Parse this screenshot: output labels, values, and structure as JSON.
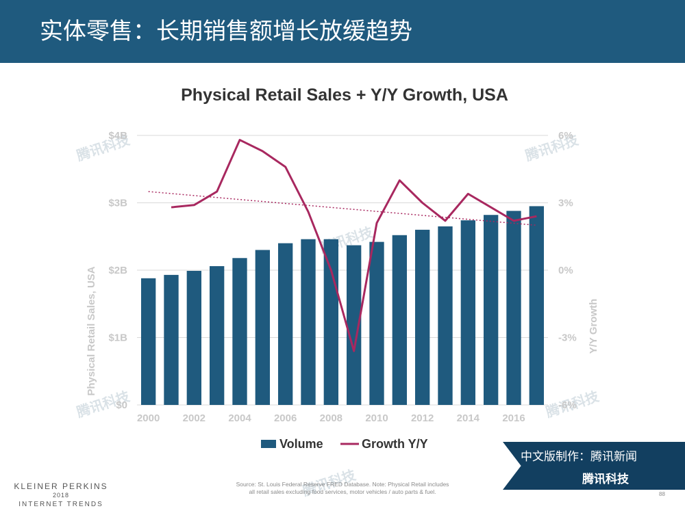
{
  "header": {
    "title": "实体零售：长期销售额增长放缓趋势"
  },
  "chart_data": {
    "type": "bar",
    "title": "Physical Retail Sales + Y/Y Growth, USA",
    "ylabel_left": "Physical Retail Sales, USA",
    "ylabel_right": "Y/Y Growth",
    "x": [
      2000,
      2001,
      2002,
      2003,
      2004,
      2005,
      2006,
      2007,
      2008,
      2009,
      2010,
      2011,
      2012,
      2013,
      2014,
      2015,
      2016,
      2017
    ],
    "xtick_labels": [
      "2000",
      "2002",
      "2004",
      "2006",
      "2008",
      "2010",
      "2012",
      "2014",
      "2016"
    ],
    "left_axis": {
      "ylim": [
        0,
        4
      ],
      "tick_values": [
        0,
        1,
        2,
        3,
        4
      ],
      "tick_labels": [
        "$0",
        "$1B",
        "$2B",
        "$3B",
        "$4B"
      ]
    },
    "right_axis": {
      "ylim": [
        -6,
        6
      ],
      "tick_values": [
        -6,
        -3,
        0,
        3,
        6
      ],
      "tick_labels": [
        "-6%",
        "-3%",
        "0%",
        "3%",
        "6%"
      ]
    },
    "series": [
      {
        "name": "Volume",
        "type": "bar",
        "axis": "left",
        "color": "#1f5a7e",
        "values": [
          1.88,
          1.93,
          1.99,
          2.06,
          2.18,
          2.3,
          2.4,
          2.46,
          2.46,
          2.37,
          2.42,
          2.52,
          2.6,
          2.65,
          2.74,
          2.82,
          2.88,
          2.95
        ]
      },
      {
        "name": "Growth Y/Y",
        "type": "line",
        "axis": "right",
        "color": "#a8285f",
        "x": [
          2001,
          2002,
          2003,
          2004,
          2005,
          2006,
          2007,
          2008,
          2009,
          2010,
          2011,
          2012,
          2013,
          2014,
          2015,
          2016,
          2017
        ],
        "values": [
          2.8,
          2.9,
          3.5,
          5.8,
          5.3,
          4.6,
          2.6,
          0.0,
          -3.6,
          2.1,
          4.0,
          3.0,
          2.2,
          3.4,
          2.8,
          2.2,
          2.4
        ]
      }
    ],
    "trendline": {
      "axis": "right",
      "color": "#a8285f",
      "x": [
        2000,
        2017
      ],
      "values": [
        3.5,
        2.0
      ]
    },
    "legend": {
      "placement": "bottom",
      "entries": [
        "Volume",
        "Growth Y/Y"
      ]
    },
    "grid": true
  },
  "footer": {
    "brand_line1": "KLEINER PERKINS",
    "brand_line2": "2018",
    "brand_line3": "INTERNET TRENDS",
    "source_line1": "Source: St. Louis Federal Reserve FRED Database.  Note: Physical Retail includes",
    "source_line2": "all retail sales excluding food services, motor vehicles / auto parts & fuel.",
    "page_number": "88"
  },
  "badge": {
    "line1": "中文版制作：腾讯新闻",
    "line2": "腾讯科技"
  },
  "watermark_text": "腾讯科技"
}
